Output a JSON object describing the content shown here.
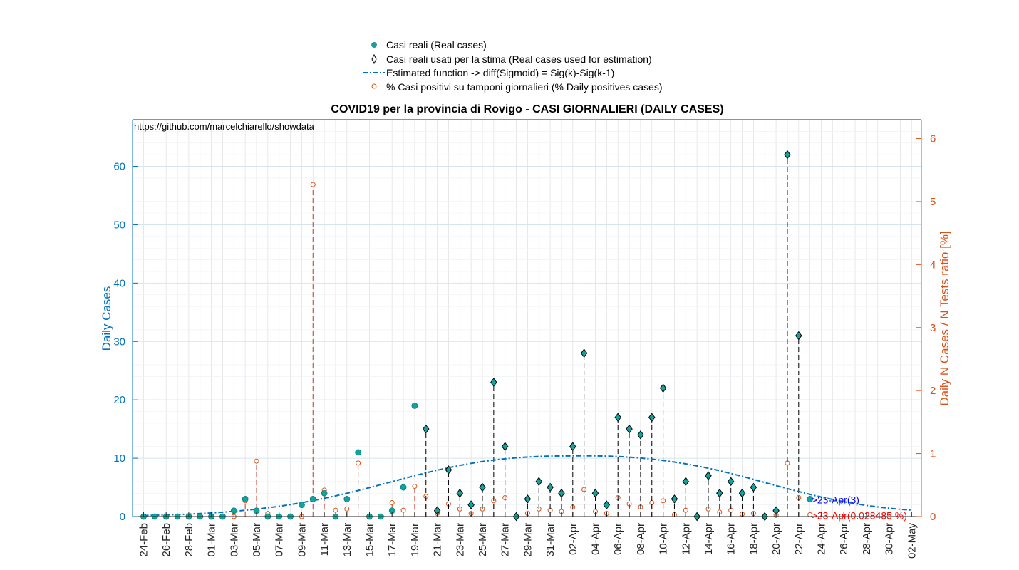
{
  "chart_data": {
    "type": "scatter",
    "title": "COVID19 per la provincia di Rovigo - CASI GIORNALIERI (DAILY CASES)",
    "source_note": "https://github.com/marcelchiarello/showdata",
    "ylabel_left": "Daily Cases",
    "ylabel_right": "Daily N Cases / N Tests ratio [%]",
    "ylim_left": [
      0,
      68
    ],
    "ylim_right": [
      0,
      6.3
    ],
    "yticks_left": [
      0,
      10,
      20,
      30,
      40,
      50,
      60
    ],
    "yticks_right": [
      0,
      1,
      2,
      3,
      4,
      5,
      6
    ],
    "grid": true,
    "x_start": "24-Feb",
    "x_count": 69,
    "xtick_labels": [
      "24-Feb",
      "26-Feb",
      "28-Feb",
      "01-Mar",
      "03-Mar",
      "05-Mar",
      "07-Mar",
      "09-Mar",
      "11-Mar",
      "13-Mar",
      "15-Mar",
      "17-Mar",
      "19-Mar",
      "21-Mar",
      "23-Mar",
      "25-Mar",
      "27-Mar",
      "29-Mar",
      "31-Mar",
      "02-Apr",
      "04-Apr",
      "06-Apr",
      "08-Apr",
      "10-Apr",
      "12-Apr",
      "14-Apr",
      "16-Apr",
      "18-Apr",
      "20-Apr",
      "22-Apr",
      "24-Apr",
      "26-Apr",
      "28-Apr",
      "30-Apr",
      "02-May"
    ],
    "legend": {
      "placement": "top-center",
      "entries": [
        "Casi reali (Real cases)",
        "Casi reali usati per la stima (Real cases used for estimation)",
        "Estimated function -> diff(Sigmoid) = Sig(k)-Sig(k-1)",
        "% Casi positivi su tamponi giornalieri (% Daily positives cases)"
      ]
    },
    "series": [
      {
        "name": "Casi reali (Real cases)",
        "color": "#0ea5a0",
        "values": [
          0,
          0,
          0,
          0,
          0,
          0,
          0,
          0,
          1,
          3,
          1,
          0,
          0,
          0,
          2,
          3,
          4,
          0,
          3,
          11,
          0,
          0,
          1,
          5,
          19,
          15,
          1,
          8,
          4,
          2,
          5,
          23,
          12,
          0,
          3,
          6,
          5,
          4,
          12,
          28,
          4,
          2,
          17,
          15,
          14,
          17,
          22,
          3,
          6,
          0,
          7,
          4,
          6,
          4,
          5,
          0,
          1,
          62,
          31,
          3
        ]
      },
      {
        "name": "Casi reali usati per la stima (Real cases used for estimation)",
        "start_day": 25,
        "values": [
          15,
          1,
          8,
          4,
          2,
          5,
          23,
          12,
          0,
          3,
          6,
          5,
          4,
          12,
          28,
          4,
          2,
          17,
          15,
          14,
          17,
          22,
          3,
          6,
          0,
          7,
          4,
          6,
          4,
          5,
          0,
          1,
          62,
          31
        ]
      },
      {
        "name": "Estimated function -> diff(Sigmoid) = Sig(k)-Sig(k-1)",
        "color": "#0072bd",
        "style": "dash-dot",
        "peak_value": 10.4,
        "peak_day": 40,
        "values": [
          0.18,
          0.22,
          0.28,
          0.34,
          0.42,
          0.51,
          0.62,
          0.75,
          0.9,
          1.07,
          1.27,
          1.5,
          1.76,
          2.05,
          2.37,
          2.73,
          3.12,
          3.54,
          3.99,
          4.46,
          4.96,
          5.47,
          5.98,
          6.5,
          7.0,
          7.49,
          7.95,
          8.38,
          8.77,
          9.12,
          9.42,
          9.68,
          9.9,
          10.07,
          10.21,
          10.3,
          10.36,
          10.39,
          10.4,
          10.4,
          10.4,
          10.36,
          10.29,
          10.18,
          10.03,
          9.84,
          9.61,
          9.34,
          9.03,
          8.68,
          8.29,
          7.86,
          7.39,
          6.89,
          6.37,
          5.84,
          5.3,
          4.78,
          4.28,
          3.8,
          3.35,
          2.93,
          2.55,
          2.21,
          1.91,
          1.65,
          1.43,
          1.25,
          1.1
        ]
      },
      {
        "name": "% Casi positivi su tamponi giornalieri (% Daily positives cases)",
        "color": "#d95319",
        "values": [
          0,
          0,
          0,
          0,
          0,
          0,
          0,
          0,
          0,
          0.25,
          0.88,
          0.05,
          0,
          0,
          0,
          5.27,
          0.42,
          0.1,
          0.12,
          0.85,
          0,
          0,
          0.22,
          0.1,
          0.48,
          0.32,
          0.05,
          0.2,
          0.12,
          0.05,
          0.12,
          0.25,
          0.3,
          0,
          0.05,
          0.12,
          0.1,
          0.08,
          0.15,
          0.43,
          0.08,
          0.05,
          0.3,
          0.2,
          0.15,
          0.22,
          0.25,
          0.03,
          0.1,
          0,
          0.12,
          0.07,
          0.1,
          0.04,
          0.05,
          0,
          0.02,
          0.85,
          0.3,
          0.03
        ]
      }
    ],
    "annotations": [
      {
        "text": ">23-Apr(3)",
        "color": "#0000ff",
        "day": 59,
        "value": 3,
        "axis": "left"
      },
      {
        "text": ">23-Apr(0.028485 %)",
        "color": "#ff0000",
        "day": 59,
        "value": 0.028485,
        "axis": "right"
      }
    ]
  }
}
